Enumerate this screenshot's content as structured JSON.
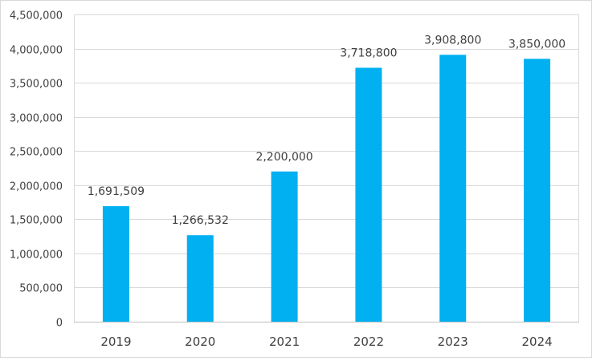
{
  "chart_data": {
    "type": "bar",
    "categories": [
      "2019",
      "2020",
      "2021",
      "2022",
      "2023",
      "2024"
    ],
    "values": [
      1691509,
      1266532,
      2200000,
      3718800,
      3908800,
      3850000
    ],
    "data_labels": [
      "1,691,509",
      "1,266,532",
      "2,200,000",
      "3,718,800",
      "3,908,800",
      "3,850,000"
    ],
    "y_ticks": [
      0,
      500000,
      1000000,
      1500000,
      2000000,
      2500000,
      3000000,
      3500000,
      4000000,
      4500000
    ],
    "y_tick_labels": [
      "0",
      "500,000",
      "1,000,000",
      "1,500,000",
      "2,000,000",
      "2,500,000",
      "3,000,000",
      "3,500,000",
      "4,000,000",
      "4,500,000"
    ],
    "ylim": [
      0,
      4500000
    ],
    "title": "",
    "xlabel": "",
    "ylabel": "",
    "grid": true,
    "legend": "none",
    "colors": {
      "bar": "#00b0f0",
      "grid": "#d9d9d9",
      "axis": "#bfbfbf",
      "text": "#404040"
    }
  }
}
